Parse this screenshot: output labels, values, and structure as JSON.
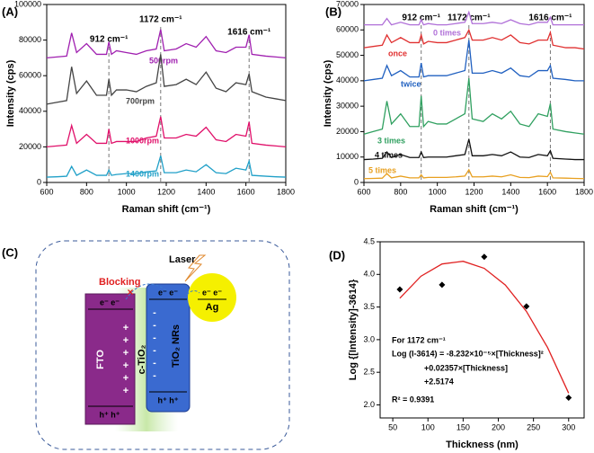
{
  "chart_data": [
    {
      "type": "line",
      "panel_label": "(A)",
      "x_label": "Raman shift (cm⁻¹)",
      "y_label": "Intensity (cps)",
      "xlim": [
        600,
        1800
      ],
      "xticks": [
        600,
        800,
        1000,
        1200,
        1400,
        1600,
        1800
      ],
      "ylim": [
        0,
        100000
      ],
      "yticks": [
        0,
        20000,
        40000,
        60000,
        80000,
        100000
      ],
      "markers": [
        {
          "value": 912,
          "label": "912 cm⁻¹"
        },
        {
          "value": 1172,
          "label": "1172 cm⁻¹"
        },
        {
          "value": 1616,
          "label": "1616 cm⁻¹"
        }
      ],
      "x": [
        600,
        650,
        700,
        725,
        750,
        800,
        850,
        900,
        912,
        925,
        950,
        1000,
        1050,
        1100,
        1150,
        1172,
        1190,
        1250,
        1300,
        1350,
        1400,
        1450,
        1500,
        1550,
        1600,
        1616,
        1630,
        1700,
        1750,
        1800
      ],
      "series": [
        {
          "name": "500rpm",
          "color": "#a020b0",
          "values": [
            70000,
            70500,
            71000,
            84000,
            73000,
            78000,
            72000,
            72000,
            79000,
            72000,
            74000,
            73000,
            72000,
            74000,
            75000,
            86000,
            74000,
            75000,
            78000,
            76000,
            82000,
            74000,
            73000,
            76000,
            76000,
            83000,
            72000,
            71000,
            70500,
            70000
          ]
        },
        {
          "name": "700rpm",
          "color": "#444444",
          "values": [
            44000,
            45000,
            46000,
            65000,
            50000,
            57000,
            49000,
            49000,
            58000,
            49000,
            52000,
            52000,
            51000,
            54000,
            56000,
            72000,
            54000,
            55000,
            58000,
            55000,
            62000,
            53000,
            51000,
            56000,
            55000,
            61000,
            51000,
            48000,
            47000,
            46000
          ]
        },
        {
          "name": "1000rpm",
          "color": "#e0106a",
          "values": [
            20000,
            20500,
            21000,
            32000,
            22000,
            27000,
            22000,
            22000,
            30000,
            22000,
            23000,
            23000,
            23000,
            25000,
            26000,
            37000,
            25000,
            25000,
            27000,
            26000,
            31000,
            24000,
            23000,
            27000,
            26000,
            34000,
            22000,
            21000,
            20500,
            20000
          ]
        },
        {
          "name": "1400rpm",
          "color": "#20a0c8",
          "values": [
            3000,
            3200,
            3500,
            9000,
            4000,
            7000,
            4000,
            4000,
            7000,
            4000,
            4500,
            5000,
            5000,
            6000,
            6500,
            15000,
            5500,
            5500,
            7000,
            6000,
            10000,
            5500,
            5000,
            8000,
            7000,
            12000,
            4000,
            3500,
            3200,
            3000
          ]
        }
      ]
    },
    {
      "type": "line",
      "panel_label": "(B)",
      "x_label": "Raman shift (cm⁻¹)",
      "y_label": "Intensity (cps)",
      "xlim": [
        600,
        1800
      ],
      "xticks": [
        600,
        800,
        1000,
        1200,
        1400,
        1600,
        1800
      ],
      "ylim": [
        0,
        70000
      ],
      "yticks": [
        0,
        10000,
        20000,
        30000,
        40000,
        50000,
        60000,
        70000
      ],
      "markers": [
        {
          "value": 912,
          "label": "912 cm⁻¹"
        },
        {
          "value": 1172,
          "label": "1172 cm⁻¹"
        },
        {
          "value": 1616,
          "label": "1616 cm⁻¹"
        }
      ],
      "x": [
        600,
        650,
        700,
        725,
        750,
        800,
        850,
        900,
        912,
        925,
        950,
        1000,
        1050,
        1100,
        1150,
        1172,
        1190,
        1250,
        1300,
        1350,
        1400,
        1450,
        1500,
        1550,
        1600,
        1616,
        1630,
        1700,
        1750,
        1800
      ],
      "series": [
        {
          "name": "0 times",
          "color": "#b070d8",
          "values": [
            62000,
            62000,
            62000,
            64500,
            62000,
            63000,
            62000,
            62000,
            64000,
            62000,
            62500,
            62000,
            62000,
            62500,
            63000,
            67000,
            62500,
            62500,
            63000,
            62500,
            64000,
            62500,
            62000,
            63000,
            63000,
            65000,
            62000,
            62000,
            62000,
            62000
          ]
        },
        {
          "name": "once",
          "color": "#e03030",
          "values": [
            53000,
            53500,
            54000,
            58000,
            55000,
            57000,
            55000,
            55000,
            58000,
            54500,
            55500,
            55000,
            55000,
            56000,
            57000,
            60000,
            56000,
            56000,
            57000,
            56000,
            58000,
            55000,
            54500,
            56000,
            56000,
            59000,
            54000,
            53000,
            53000,
            52500
          ]
        },
        {
          "name": "twice",
          "color": "#2060c0",
          "values": [
            40000,
            40500,
            41000,
            46000,
            42000,
            44000,
            41500,
            41500,
            47000,
            41500,
            42000,
            42000,
            42000,
            43000,
            44000,
            56000,
            43000,
            43000,
            44000,
            43000,
            45000,
            42000,
            41500,
            44000,
            44000,
            46000,
            41000,
            40500,
            40000,
            40000
          ]
        },
        {
          "name": "3 times",
          "color": "#30a060",
          "values": [
            19000,
            20000,
            21000,
            32000,
            23000,
            27000,
            22000,
            22000,
            34000,
            22000,
            24000,
            23000,
            23000,
            25000,
            27000,
            41000,
            25000,
            24000,
            27000,
            25000,
            28000,
            23000,
            22000,
            27000,
            26000,
            31000,
            21000,
            20000,
            19500,
            19000
          ]
        },
        {
          "name": "4 times",
          "color": "#111111",
          "values": [
            9000,
            9200,
            9500,
            12000,
            9800,
            11000,
            9800,
            9800,
            12000,
            9800,
            10000,
            10000,
            10000,
            10500,
            11000,
            17000,
            10500,
            10500,
            11000,
            10500,
            12000,
            10000,
            9800,
            11000,
            10500,
            12500,
            9500,
            9200,
            9000,
            9000
          ]
        },
        {
          "name": "5 times",
          "color": "#e8a020",
          "values": [
            1500,
            1600,
            1700,
            3500,
            1800,
            2500,
            1800,
            1800,
            3000,
            1800,
            2000,
            2000,
            2000,
            2200,
            2500,
            5000,
            2200,
            2200,
            2500,
            2200,
            3000,
            2000,
            1900,
            2500,
            2300,
            4000,
            1800,
            1700,
            1600,
            1500
          ]
        }
      ]
    },
    {
      "type": "scatter",
      "panel_label": "(D)",
      "x_label": "Thickness (nm)",
      "y_label": "Log {[Intensity]-3614}",
      "xlim": [
        32,
        322
      ],
      "xticks": [
        50,
        100,
        150,
        200,
        250,
        300
      ],
      "ylim": [
        1.8,
        4.5
      ],
      "yticks": [
        {
          "value": 2.0,
          "label": "2.0"
        },
        {
          "value": 2.5,
          "label": "2.5"
        },
        {
          "value": 3.0,
          "label": "3.0"
        },
        {
          "value": 3.5,
          "label": "3.5"
        },
        {
          "value": 4.0,
          "label": "4.0"
        },
        {
          "value": 4.5,
          "label": "4.5"
        }
      ],
      "points": {
        "color": "#000000",
        "x": [
          60,
          120,
          180,
          240,
          300
        ],
        "values": [
          3.77,
          3.84,
          4.27,
          3.51,
          2.11
        ]
      },
      "fit": {
        "color": "#e02020",
        "x": [
          60,
          90,
          120,
          150,
          180,
          210,
          240,
          270,
          300
        ],
        "values": [
          3.635,
          3.972,
          4.16,
          4.201,
          4.093,
          3.837,
          3.433,
          2.88,
          2.18
        ]
      },
      "annotations": [
        "For 1172 cm⁻¹",
        "Log (I-3614) = -8.232×10⁻⁵×[Thickness]²",
        "+0.02357×[Thickness]",
        "+2.5174",
        "R² = 0.9391"
      ]
    }
  ],
  "diagram": {
    "panel_label": "(C)",
    "laser": "Laser",
    "blocking": "Blocking",
    "cross": "×",
    "fto": {
      "label": "FTO",
      "electrons": "e⁻ e⁻",
      "holes": "h⁺ h⁺",
      "charges": [
        "+",
        "+",
        "+",
        "+",
        "+",
        "+"
      ]
    },
    "ctio2": {
      "label": "c-TiO₂"
    },
    "nrs": {
      "label": "TiO₂ NRs",
      "electrons": "e⁻ e⁻",
      "holes": "h⁺ h⁺",
      "charges": [
        "-",
        "-",
        "-",
        "-",
        "-",
        "-"
      ]
    },
    "ag": {
      "label": "Ag",
      "electrons": "e⁻ e⁻"
    }
  }
}
